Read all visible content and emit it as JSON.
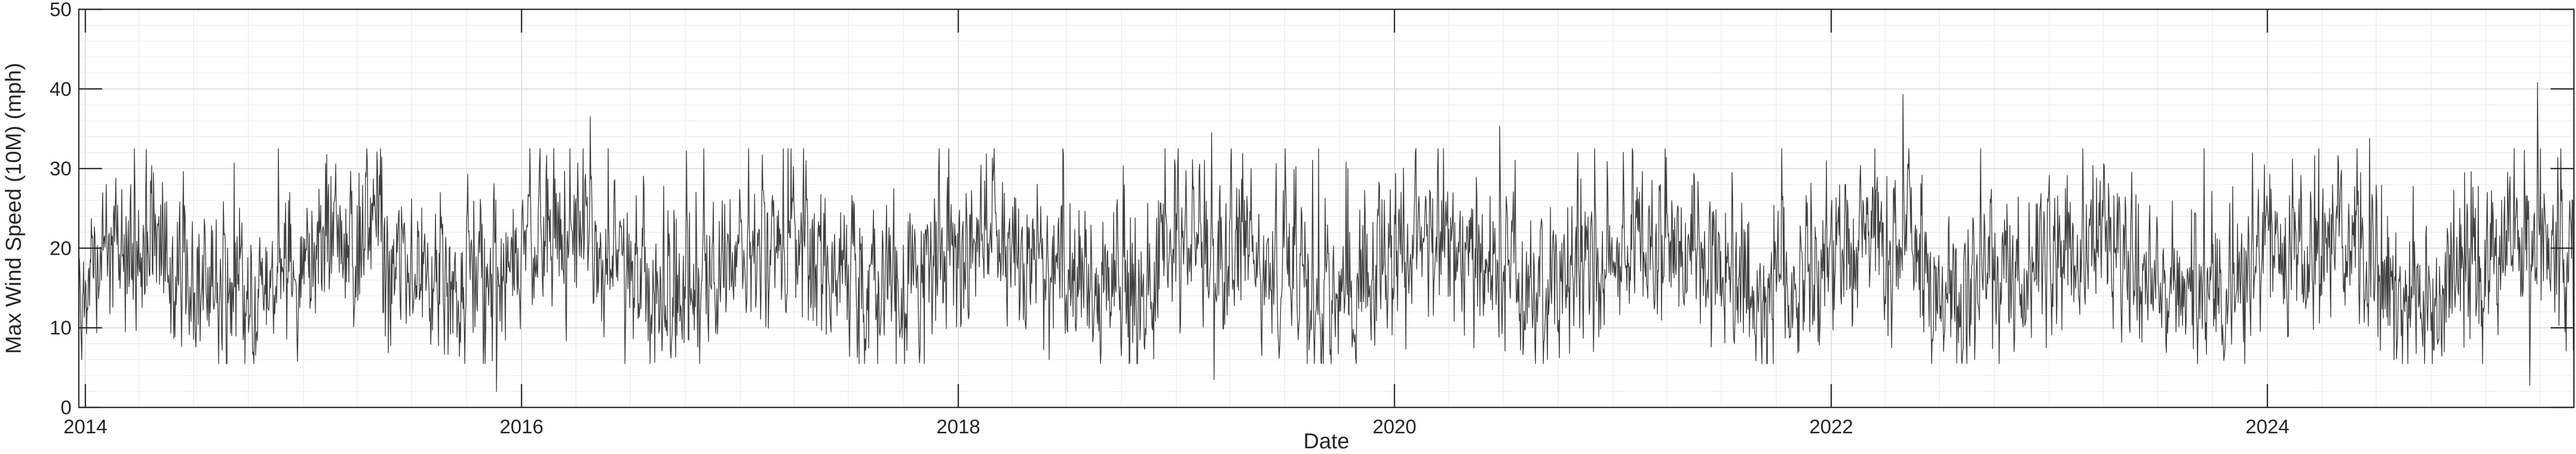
{
  "chart_data": {
    "type": "line",
    "title": "",
    "xlabel": "Date",
    "ylabel": "Max Wind Speed (10M) (mph)",
    "xlim": [
      "2013-12-21",
      "2025-05-28"
    ],
    "ylim": [
      0,
      50
    ],
    "x_ticks": [
      "2014-01-01",
      "2016-01-01",
      "2018-01-01",
      "2020-01-01",
      "2022-01-01",
      "2024-01-01"
    ],
    "x_tick_labels": [
      "2014",
      "2016",
      "2018",
      "2020",
      "2022",
      "2024"
    ],
    "y_ticks": [
      0,
      10,
      20,
      30,
      40,
      50
    ],
    "y_tick_labels": [
      "0",
      "10",
      "20",
      "30",
      "40",
      "50"
    ],
    "grid": true,
    "minor_grid": true,
    "legend": "none",
    "colors": {
      "line": "#404040",
      "axis": "#262626",
      "grid_major": "#dcdcdc",
      "grid_minor": "#ececec"
    },
    "series": [
      {
        "notes": "daily values 2013-12-21 to 2025-05-28, approximately 18 mph on average, typical range 6 to 32 mph",
        "x_start": "2013-12-21",
        "x_end": "2025-05-28",
        "mean": 17.5,
        "peaks": [
          {
            "x": "2015-11-20",
            "y": 2
          },
          {
            "x": "2016-04-25",
            "y": 36.5
          },
          {
            "x": "2019-03-01",
            "y": 34.5
          },
          {
            "x": "2019-03-05",
            "y": 3.5
          },
          {
            "x": "2020-06-25",
            "y": 35.3
          },
          {
            "x": "2022-05-01",
            "y": 39.3
          },
          {
            "x": "2024-06-20",
            "y": 33.8
          },
          {
            "x": "2025-03-15",
            "y": 2.8
          },
          {
            "x": "2025-03-28",
            "y": 40.8
          }
        ]
      }
    ]
  }
}
